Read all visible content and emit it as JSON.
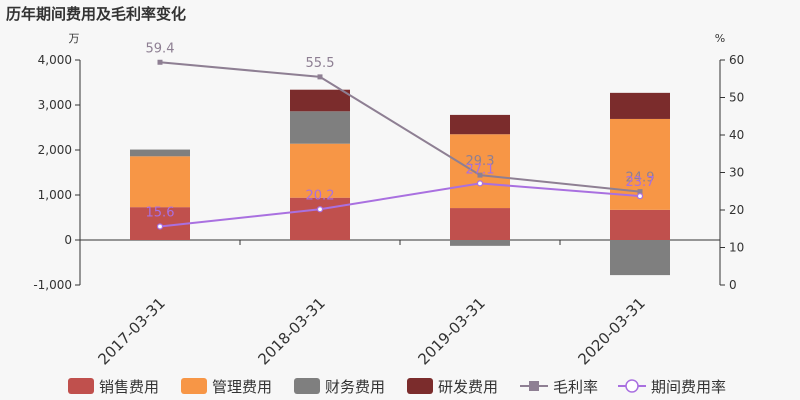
{
  "title": "历年期间费用及毛利率变化",
  "chart_data": {
    "type": "bar+line",
    "categories": [
      "2017-03-31",
      "2018-03-31",
      "2019-03-31",
      "2020-03-31"
    ],
    "left_unit": "万",
    "right_unit": "%",
    "left_ticks": [
      "-1,000",
      "0",
      "1,000",
      "2,000",
      "3,000",
      "4,000"
    ],
    "right_ticks": [
      "0",
      "10",
      "20",
      "30",
      "40",
      "50",
      "60"
    ],
    "ylim_left": [
      -1000,
      4000
    ],
    "ylim_right": [
      0,
      60
    ],
    "bar_series": [
      {
        "name": "销售费用",
        "color": "#c0504d",
        "values": [
          730,
          940,
          710,
          670
        ]
      },
      {
        "name": "管理费用",
        "color": "#f79646",
        "values": [
          1130,
          1200,
          1640,
          2020
        ]
      },
      {
        "name": "财务费用",
        "color": "#7f7f7f",
        "values": [
          150,
          720,
          -130,
          -780
        ]
      },
      {
        "name": "研发费用",
        "color": "#7b2c2c",
        "values": [
          0,
          480,
          430,
          580
        ]
      }
    ],
    "line_series": [
      {
        "name": "毛利率",
        "color": "#8e7f93",
        "marker": "square",
        "values": [
          59.4,
          55.5,
          29.3,
          24.9
        ],
        "labels": [
          "59.4",
          "55.5",
          "29.3",
          "24.9"
        ]
      },
      {
        "name": "期间费用率",
        "color": "#a970e0",
        "marker": "circle",
        "values": [
          15.6,
          20.2,
          27.1,
          23.7
        ],
        "labels": [
          "15.6",
          "20.2",
          "27.1",
          "23.7"
        ]
      }
    ],
    "legend_position": "bottom"
  }
}
